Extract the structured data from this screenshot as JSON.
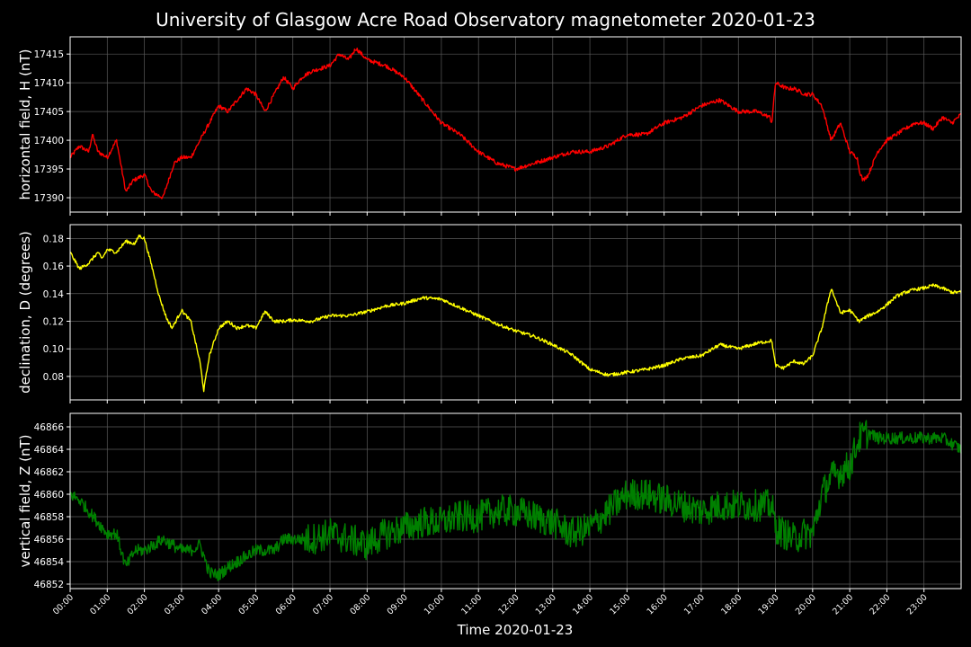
{
  "title": "University of Glasgow Acre Road Observatory magnetometer 2020-01-23",
  "xlabel": "Time 2020-01-23",
  "x_ticks": [
    "00:00",
    "01:00",
    "02:00",
    "03:00",
    "04:00",
    "05:00",
    "06:00",
    "07:00",
    "08:00",
    "09:00",
    "10:00",
    "11:00",
    "12:00",
    "13:00",
    "14:00",
    "15:00",
    "16:00",
    "17:00",
    "18:00",
    "19:00",
    "20:00",
    "21:00",
    "22:00",
    "23:00"
  ],
  "chart_data": [
    {
      "type": "line",
      "ylabel": "horizontal field, H (nT)",
      "color": "#ff0000",
      "xlim": [
        0,
        24
      ],
      "ylim": [
        17387.5,
        17418
      ],
      "yticks": [
        17390,
        17395,
        17400,
        17405,
        17410,
        17415
      ],
      "ytick_labels": [
        "17390",
        "17395",
        "17400",
        "17405",
        "17410",
        "17415"
      ],
      "grid": true,
      "x_hours": [
        0,
        0.25,
        0.5,
        0.6,
        0.75,
        1.0,
        1.25,
        1.5,
        1.7,
        2.0,
        2.2,
        2.5,
        2.6,
        2.8,
        3.0,
        3.25,
        3.5,
        3.75,
        4.0,
        4.25,
        4.5,
        4.75,
        5.0,
        5.25,
        5.5,
        5.75,
        6.0,
        6.25,
        6.5,
        7.0,
        7.25,
        7.5,
        7.7,
        8.0,
        8.5,
        9.0,
        9.5,
        10.0,
        10.5,
        11.0,
        11.5,
        12.0,
        12.5,
        13.0,
        13.5,
        14.0,
        14.5,
        15.0,
        15.5,
        16.0,
        16.5,
        17.0,
        17.5,
        18.0,
        18.5,
        18.85,
        18.9,
        19.0,
        19.3,
        19.5,
        19.8,
        20.0,
        20.25,
        20.5,
        20.75,
        21.0,
        21.2,
        21.25,
        21.35,
        21.5,
        21.75,
        22.0,
        22.25,
        22.5,
        22.75,
        23.0,
        23.25,
        23.5,
        23.75,
        24.0
      ],
      "values": [
        17397,
        17399,
        17398,
        17401,
        17398,
        17397,
        17400,
        17391,
        17393,
        17394,
        17391,
        17390,
        17392,
        17396,
        17397,
        17397,
        17400,
        17403,
        17406,
        17405,
        17407,
        17409,
        17408,
        17405,
        17408,
        17411,
        17409,
        17411,
        17412,
        17413,
        17415,
        17414,
        17416,
        17414,
        17413,
        17411,
        17407,
        17403,
        17401,
        17398,
        17396,
        17395,
        17396,
        17397,
        17398,
        17398,
        17399,
        17401,
        17401,
        17403,
        17404,
        17406,
        17407,
        17405,
        17405,
        17404,
        17403,
        17410,
        17409,
        17409,
        17408,
        17408,
        17406,
        17400,
        17403,
        17398,
        17397,
        17395,
        17393,
        17394,
        17398,
        17400,
        17401,
        17402,
        17403,
        17403,
        17402,
        17404,
        17403,
        17404.5
      ]
    },
    {
      "type": "line",
      "ylabel": "declination, D (degrees)",
      "color": "#ffff00",
      "xlim": [
        0,
        24
      ],
      "ylim": [
        0.063,
        0.19
      ],
      "yticks": [
        0.08,
        0.1,
        0.12,
        0.14,
        0.16,
        0.18
      ],
      "ytick_labels": [
        "0.08",
        "0.10",
        "0.12",
        "0.14",
        "0.16",
        "0.18"
      ],
      "grid": true,
      "x_hours": [
        0,
        0.25,
        0.5,
        0.75,
        0.85,
        1.0,
        1.25,
        1.5,
        1.75,
        1.85,
        2.0,
        2.2,
        2.4,
        2.6,
        2.75,
        3.0,
        3.25,
        3.5,
        3.6,
        3.75,
        4.0,
        4.25,
        4.5,
        4.75,
        5.0,
        5.25,
        5.5,
        5.75,
        6.0,
        6.5,
        7.0,
        7.5,
        8.0,
        8.5,
        9.0,
        9.5,
        10.0,
        10.5,
        11.0,
        11.5,
        12.0,
        12.5,
        13.0,
        13.5,
        14.0,
        14.5,
        15.0,
        15.5,
        16.0,
        16.5,
        17.0,
        17.5,
        18.0,
        18.5,
        18.9,
        19.0,
        19.2,
        19.5,
        19.75,
        20.0,
        20.25,
        20.5,
        20.75,
        21.0,
        21.25,
        21.5,
        21.75,
        22.0,
        22.25,
        22.5,
        22.75,
        23.0,
        23.25,
        23.5,
        23.75,
        24.0
      ],
      "values": [
        0.17,
        0.158,
        0.162,
        0.17,
        0.165,
        0.172,
        0.17,
        0.178,
        0.176,
        0.182,
        0.18,
        0.16,
        0.138,
        0.122,
        0.115,
        0.128,
        0.12,
        0.09,
        0.07,
        0.095,
        0.115,
        0.12,
        0.115,
        0.117,
        0.115,
        0.127,
        0.12,
        0.12,
        0.121,
        0.12,
        0.124,
        0.124,
        0.127,
        0.131,
        0.133,
        0.137,
        0.136,
        0.13,
        0.124,
        0.118,
        0.113,
        0.109,
        0.103,
        0.096,
        0.085,
        0.081,
        0.083,
        0.085,
        0.088,
        0.093,
        0.095,
        0.103,
        0.1,
        0.104,
        0.106,
        0.088,
        0.086,
        0.091,
        0.089,
        0.095,
        0.115,
        0.144,
        0.126,
        0.128,
        0.12,
        0.124,
        0.127,
        0.132,
        0.138,
        0.141,
        0.143,
        0.144,
        0.146,
        0.144,
        0.141,
        0.141
      ]
    },
    {
      "type": "line",
      "ylabel": "vertical field, Z (nT)",
      "color": "#008000",
      "xlim": [
        0,
        24
      ],
      "ylim": [
        46851.6,
        46867.2
      ],
      "yticks": [
        46852,
        46854,
        46856,
        46858,
        46860,
        46862,
        46864,
        46866
      ],
      "ytick_labels": [
        "46852",
        "46854",
        "46856",
        "46858",
        "46860",
        "46862",
        "46864",
        "46866"
      ],
      "grid": true,
      "x_hours": [
        0,
        0.25,
        0.5,
        0.75,
        1.0,
        1.25,
        1.5,
        1.75,
        2.0,
        2.25,
        2.5,
        2.75,
        3.0,
        3.25,
        3.5,
        3.75,
        4.0,
        4.25,
        4.5,
        4.75,
        5.0,
        5.25,
        5.5,
        5.75,
        6.0,
        6.5,
        7.0,
        7.5,
        8.0,
        8.5,
        9.0,
        9.5,
        10.0,
        10.5,
        11.0,
        11.5,
        12.0,
        12.5,
        13.0,
        13.5,
        14.0,
        14.5,
        15.0,
        15.5,
        16.0,
        16.5,
        17.0,
        17.5,
        18.0,
        18.5,
        18.9,
        19.0,
        19.25,
        19.5,
        19.75,
        20.0,
        20.25,
        20.5,
        20.75,
        21.0,
        21.25,
        21.5,
        21.75,
        22.0,
        22.5,
        23.0,
        23.5,
        24.0
      ],
      "values": [
        46860,
        46859.5,
        46858.5,
        46857.5,
        46856.5,
        46856.5,
        46853.5,
        46855,
        46855,
        46855.5,
        46856,
        46855.5,
        46855,
        46855,
        46855.5,
        46853,
        46852.8,
        46853.5,
        46854,
        46854.5,
        46855,
        46855,
        46855,
        46856,
        46856,
        46856,
        46856.5,
        46856,
        46855.5,
        46856.5,
        46857,
        46857.5,
        46857.5,
        46858,
        46858,
        46858.5,
        46858.5,
        46858,
        46857.5,
        46856.5,
        46857,
        46858.5,
        46860,
        46860,
        46859.5,
        46859,
        46858.5,
        46859,
        46859,
        46859,
        46859,
        46857,
        46856.5,
        46856,
        46856.5,
        46856.5,
        46860,
        46861.5,
        46862,
        46862.5,
        46865,
        46865.5,
        46865,
        46865,
        46865,
        46865,
        46865,
        46864
      ]
    }
  ]
}
